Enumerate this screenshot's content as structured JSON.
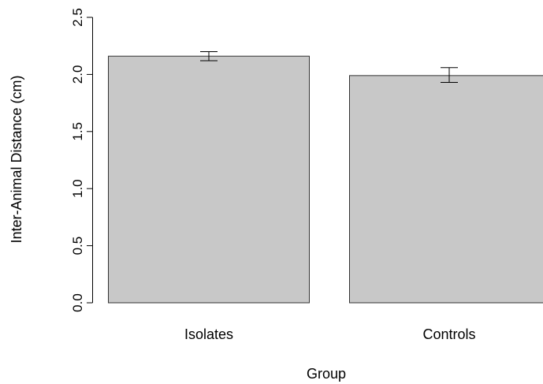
{
  "chart_data": {
    "type": "bar",
    "title": "",
    "xlabel": "Group",
    "ylabel": "Inter-Animal Distance (cm)",
    "categories": [
      "Isolates",
      "Controls"
    ],
    "values": [
      2.16,
      1.99
    ],
    "error_low": [
      2.12,
      1.93
    ],
    "error_high": [
      2.2,
      2.06
    ],
    "ylim": [
      0,
      2.5
    ],
    "yticks": [
      0.0,
      0.5,
      1.0,
      1.5,
      2.0,
      2.5
    ],
    "ytick_labels": [
      "0.0",
      "0.5",
      "1.0",
      "1.5",
      "2.0",
      "2.5"
    ],
    "grid": false,
    "legend": "none",
    "bar_color": "#c8c8c8",
    "edge_color": "#333333"
  }
}
